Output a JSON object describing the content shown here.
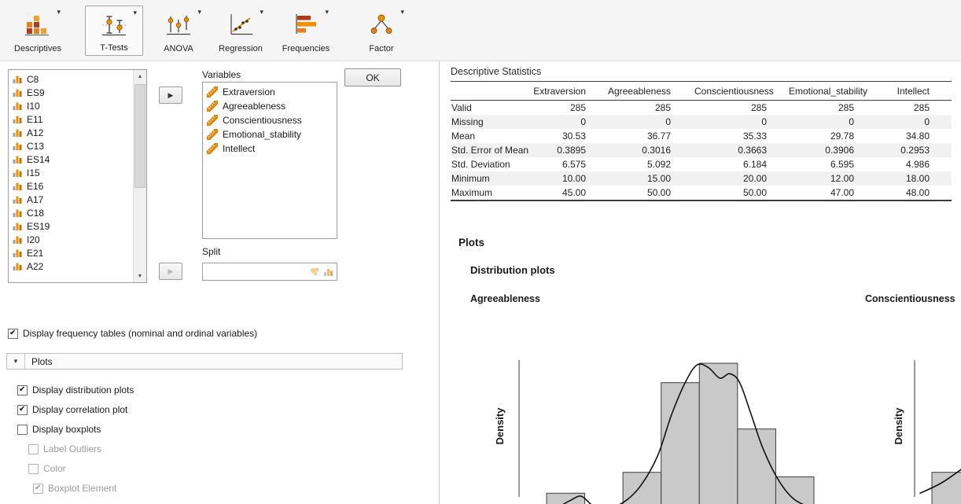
{
  "ribbon": {
    "items": [
      {
        "label": "Descriptives",
        "selected": false
      },
      {
        "label": "T-Tests",
        "selected": true
      },
      {
        "label": "ANOVA",
        "selected": false
      },
      {
        "label": "Regression",
        "selected": false
      },
      {
        "label": "Frequencies",
        "selected": false
      },
      {
        "label": "Factor",
        "selected": false
      }
    ]
  },
  "options": {
    "available_variables": [
      "C8",
      "ES9",
      "I10",
      "E11",
      "A12",
      "C13",
      "ES14",
      "I15",
      "E16",
      "A17",
      "C18",
      "ES19",
      "I20",
      "E21",
      "A22"
    ],
    "variables_box": {
      "label": "Variables",
      "items": [
        "Extraversion",
        "Agreeableness",
        "Conscientiousness",
        "Emotional_stability",
        "Intellect"
      ]
    },
    "ok_button": "OK",
    "split": {
      "label": "Split",
      "value": ""
    },
    "frequency_checkbox": {
      "label": "Display frequency tables (nominal and ordinal variables)",
      "checked": true
    },
    "plots_section_label": "Plots",
    "plot_checkboxes": [
      {
        "label": "Display distribution plots",
        "checked": true,
        "disabled": false,
        "indent": 0
      },
      {
        "label": "Display correlation plot",
        "checked": true,
        "disabled": false,
        "indent": 0
      },
      {
        "label": "Display boxplots",
        "checked": false,
        "disabled": false,
        "indent": 0
      },
      {
        "label": "Label Outliers",
        "checked": false,
        "disabled": true,
        "indent": 1
      },
      {
        "label": "Color",
        "checked": false,
        "disabled": true,
        "indent": 1
      },
      {
        "label": "Boxplot Element",
        "checked": true,
        "disabled": true,
        "indent": 2
      }
    ]
  },
  "results": {
    "table": {
      "title": "Descriptive Statistics",
      "columns": [
        "Extraversion",
        "Agreeableness",
        "Conscientiousness",
        "Emotional_stability",
        "Intellect"
      ],
      "rows": [
        {
          "label": "Valid",
          "values": [
            "285",
            "285",
            "285",
            "285",
            "285"
          ]
        },
        {
          "label": "Missing",
          "values": [
            "0",
            "0",
            "0",
            "0",
            "0"
          ]
        },
        {
          "label": "Mean",
          "values": [
            "30.53",
            "36.77",
            "35.33",
            "29.78",
            "34.80"
          ]
        },
        {
          "label": "Std. Error of Mean",
          "values": [
            "0.3895",
            "0.3016",
            "0.3663",
            "0.3906",
            "0.2953"
          ]
        },
        {
          "label": "Std. Deviation",
          "values": [
            "6.575",
            "5.092",
            "6.184",
            "6.595",
            "4.986"
          ]
        },
        {
          "label": "Minimum",
          "values": [
            "10.00",
            "15.00",
            "20.00",
            "12.00",
            "18.00"
          ]
        },
        {
          "label": "Maximum",
          "values": [
            "45.00",
            "50.00",
            "50.00",
            "47.00",
            "48.00"
          ]
        }
      ]
    },
    "plots_heading": "Plots",
    "distribution_heading": "Distribution plots",
    "plot1_title": "Agreeableness",
    "plot2_title": "Conscientiousness",
    "density_label": "Density"
  },
  "chart_data": [
    {
      "type": "bar",
      "title": "Agreeableness",
      "ylabel": "Density",
      "note": "histogram with kernel density overlay; x-axis cropped below view",
      "bar_heights_relative": [
        0.13,
        0,
        0.27,
        0.87,
        1.0,
        0.56,
        0.24
      ],
      "density_curve_relative": [
        [
          0,
          0.01
        ],
        [
          0.05,
          0.02
        ],
        [
          0.11,
          0.08
        ],
        [
          0.15,
          0.11
        ],
        [
          0.19,
          0.05
        ],
        [
          0.24,
          0.03
        ],
        [
          0.3,
          0.07
        ],
        [
          0.36,
          0.18
        ],
        [
          0.42,
          0.38
        ],
        [
          0.47,
          0.66
        ],
        [
          0.52,
          0.88
        ],
        [
          0.56,
          0.99
        ],
        [
          0.6,
          0.97
        ],
        [
          0.64,
          0.9
        ],
        [
          0.675,
          0.93
        ],
        [
          0.71,
          0.87
        ],
        [
          0.75,
          0.66
        ],
        [
          0.79,
          0.44
        ],
        [
          0.84,
          0.24
        ],
        [
          0.89,
          0.11
        ],
        [
          0.94,
          0.05
        ],
        [
          1,
          0.02
        ]
      ]
    },
    {
      "type": "bar",
      "title": "Conscientiousness",
      "ylabel": "Density",
      "note": "partially visible at right edge",
      "bar_heights_relative": [
        0.27
      ],
      "density_curve_relative": [
        [
          0,
          0.13
        ],
        [
          0.5,
          0.2
        ],
        [
          1,
          0.3
        ]
      ]
    }
  ]
}
